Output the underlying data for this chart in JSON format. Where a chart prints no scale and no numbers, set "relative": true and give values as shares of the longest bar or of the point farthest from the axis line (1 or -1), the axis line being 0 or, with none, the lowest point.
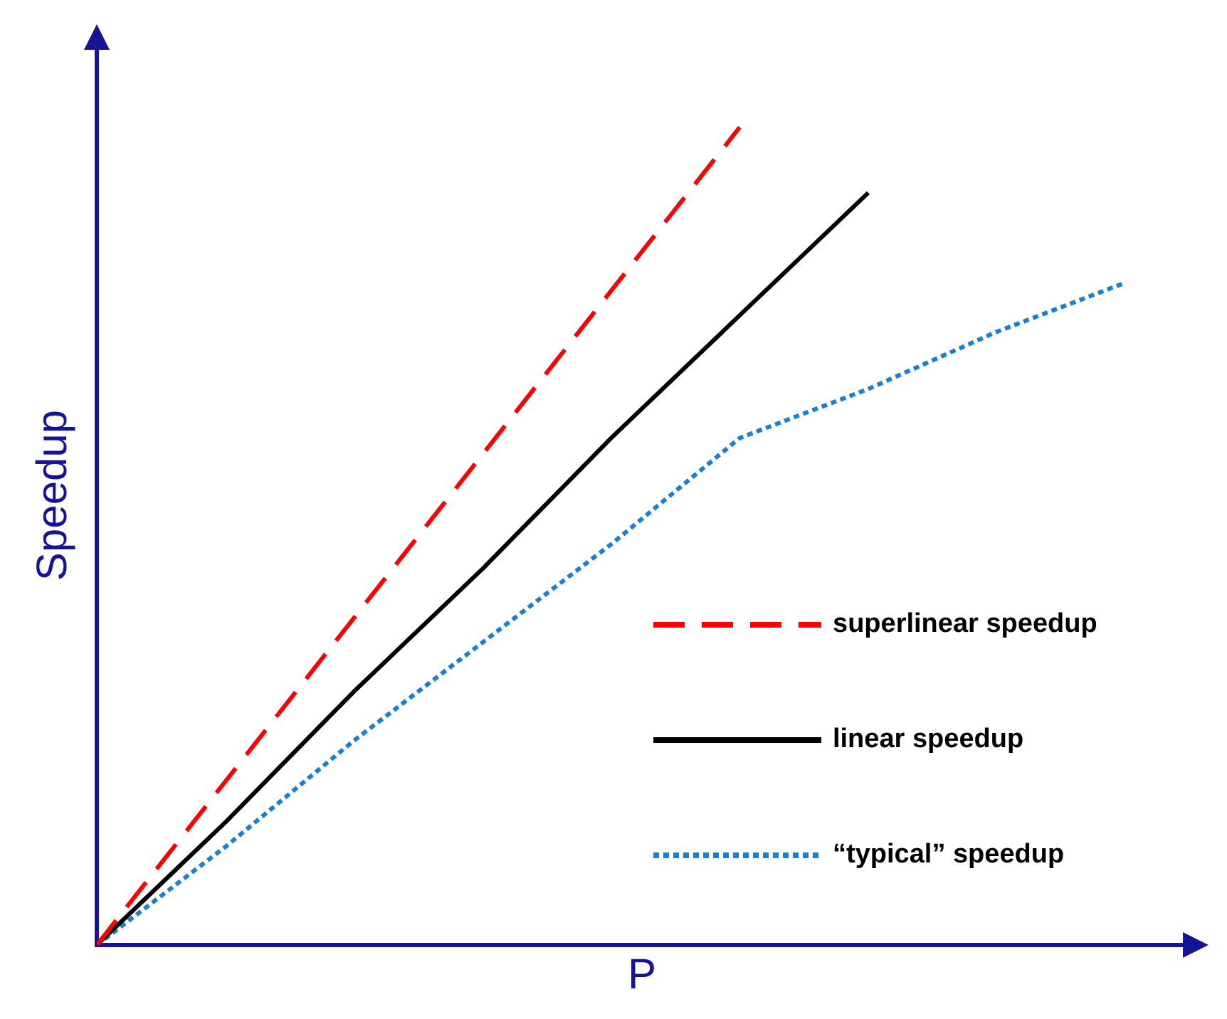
{
  "chart_data": {
    "type": "line",
    "relative": true,
    "xlabel": "P",
    "ylabel": "Speedup",
    "legend": "bottom right",
    "tick_labels": false,
    "grid": false,
    "categories": [
      null,
      null,
      null,
      null,
      null,
      null,
      null,
      null,
      null
    ],
    "series": [
      {
        "name": "superlinear speedup",
        "color": "#ff0000",
        "line_style": "dashed",
        "values": [
          0,
          0.2,
          0.4,
          0.6,
          0.8,
          1,
          null,
          null,
          null
        ]
      },
      {
        "name": "linear speedup",
        "color": "#000000",
        "line_style": "solid",
        "values": [
          0,
          0.15,
          0.31,
          0.46,
          0.62,
          0.77,
          0.92,
          null,
          null
        ]
      },
      {
        "name": "“typical” speedup",
        "color": "#1a7fd0",
        "line_style": "dotted",
        "values": [
          0,
          0.12,
          0.25,
          0.37,
          0.49,
          0.62,
          0.68,
          0.75,
          0.81
        ]
      }
    ]
  }
}
